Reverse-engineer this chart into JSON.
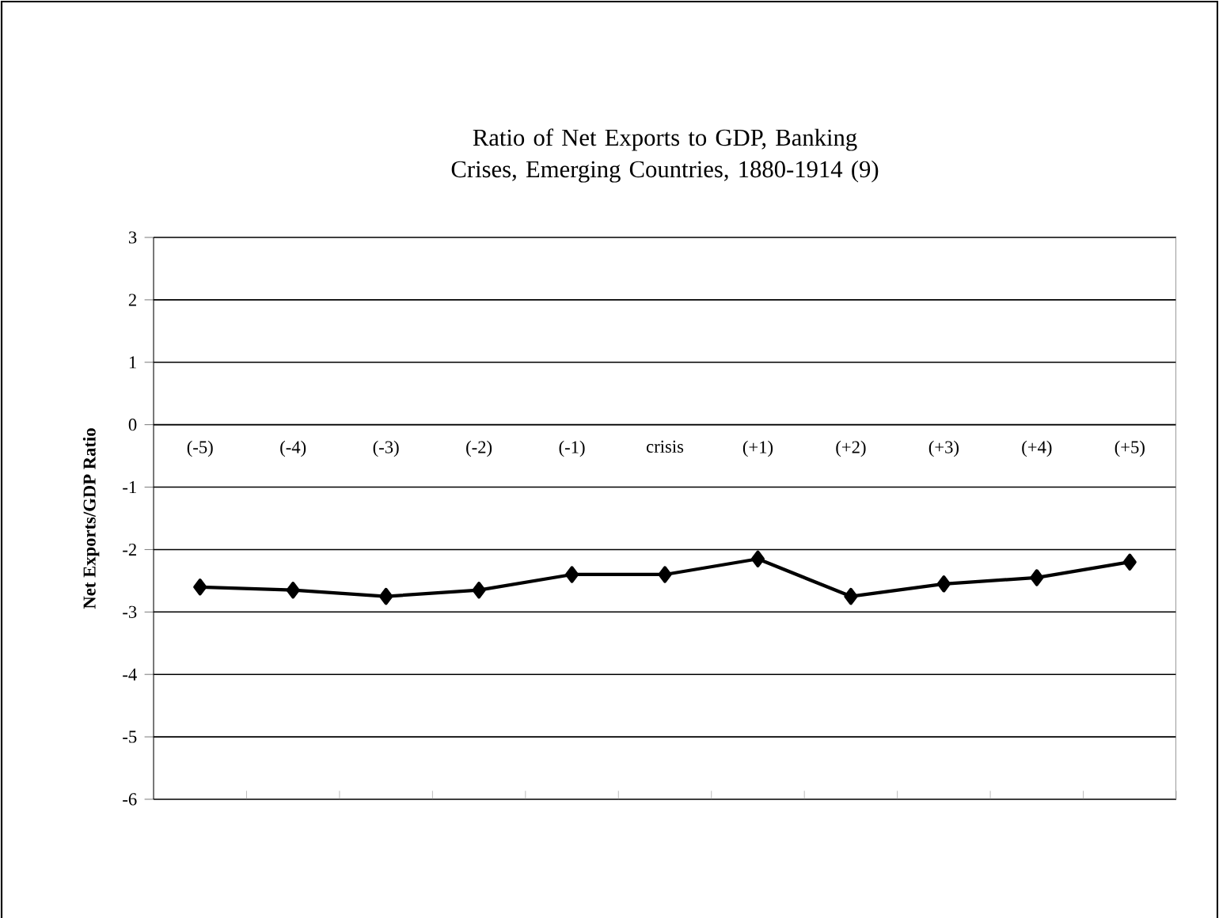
{
  "chart_data": {
    "type": "line",
    "title": "Ratio of Net Exports to GDP, Banking Crises, Emerging Countries, 1880-1914 (9)",
    "ylabel": "Net Exports/GDP Ratio",
    "categories": [
      "(-5)",
      "(-4)",
      "(-3)",
      "(-2)",
      "(-1)",
      "crisis",
      "(+1)",
      "(+2)",
      "(+3)",
      "(+4)",
      "(+5)"
    ],
    "series": [
      {
        "color": "#000000",
        "values": [
          -2.6,
          -2.65,
          -2.75,
          -2.65,
          -2.4,
          -2.4,
          -2.15,
          -2.75,
          -2.55,
          -2.45,
          -2.2
        ]
      }
    ],
    "ylim": [
      -6,
      3
    ],
    "yticks": [
      -6,
      -5,
      -4,
      -3,
      -2,
      -1,
      0,
      1,
      2,
      3
    ],
    "grid": "y",
    "marker": "diamond",
    "line_style": "solid"
  }
}
